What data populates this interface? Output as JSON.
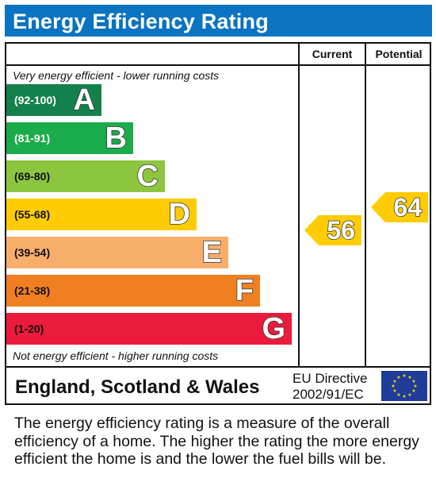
{
  "title": "Energy Efficiency Rating",
  "columns": {
    "current": "Current",
    "potential": "Potential"
  },
  "notes": {
    "top": "Very energy efficient - lower running costs",
    "bottom": "Not energy efficient - higher running costs"
  },
  "footer": {
    "region": "England, Scotland & Wales",
    "directive_line1": "EU Directive",
    "directive_line2": "2002/91/EC"
  },
  "description": "The energy efficiency rating is a measure of the overall efficiency of a home. The higher the rating the more energy efficient the home is and the lower the fuel bills will be.",
  "chart_data": {
    "type": "bar",
    "title": "Energy Efficiency Rating",
    "bands": [
      {
        "range": "(92-100)",
        "letter": "A",
        "color": "#12814b",
        "range_text_color": "#ffffff"
      },
      {
        "range": "(81-91)",
        "letter": "B",
        "color": "#1aac4a",
        "range_text_color": "#ffffff"
      },
      {
        "range": "(69-80)",
        "letter": "C",
        "color": "#8cc63e",
        "range_text_color": "#111111"
      },
      {
        "range": "(55-68)",
        "letter": "D",
        "color": "#ffcc03",
        "range_text_color": "#111111"
      },
      {
        "range": "(39-54)",
        "letter": "E",
        "color": "#f8ae6b",
        "range_text_color": "#111111"
      },
      {
        "range": "(21-38)",
        "letter": "F",
        "color": "#f07f22",
        "range_text_color": "#111111"
      },
      {
        "range": "(1-20)",
        "letter": "G",
        "color": "#ec1b3b",
        "range_text_color": "#111111"
      }
    ],
    "current": {
      "value": 56,
      "band": "D",
      "color": "#ffcc03"
    },
    "potential": {
      "value": 64,
      "band": "D",
      "color": "#ffcc03"
    }
  }
}
